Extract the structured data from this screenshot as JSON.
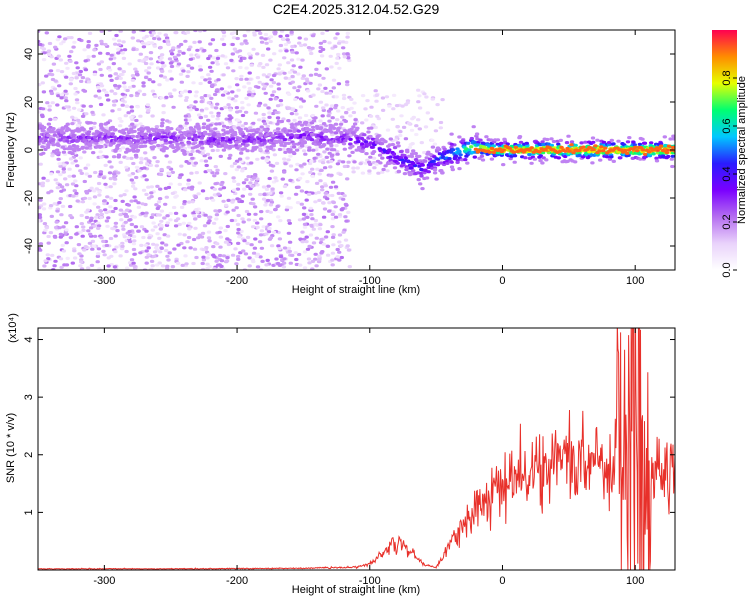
{
  "title": "C2E4.2025.312.04.52.G29",
  "colors": {
    "snr_line": "#e8302a",
    "frame": "#000000"
  },
  "chart_data": [
    {
      "type": "heatmap",
      "xlabel": "Height of straight line (km)",
      "ylabel": "Frequency (Hz)",
      "xlim": [
        -350,
        130
      ],
      "ylim": [
        -50,
        50
      ],
      "x_ticks": [
        -300,
        -200,
        -100,
        0,
        100
      ],
      "y_ticks": [
        -40,
        -20,
        0,
        20,
        40
      ],
      "colorbar": {
        "label": "Normalized spectral amplitude",
        "range": [
          0,
          1
        ],
        "ticks": [
          0.0,
          0.2,
          0.4,
          0.6,
          0.8
        ],
        "tick_labels": [
          "0.0",
          "0.2",
          "0.4",
          "0.6",
          "0.8"
        ],
        "colormap": [
          "#ffffff",
          "#e9d2fb",
          "#b46ef0",
          "#7a00ff",
          "#2a1cff",
          "#00c8ff",
          "#00ff70",
          "#e6ff00",
          "#ff8c00",
          "#ff0050"
        ]
      },
      "ridge": {
        "x": [
          -350,
          -300,
          -250,
          -200,
          -150,
          -120,
          -100,
          -80,
          -60,
          -50,
          -30,
          -20,
          0,
          50,
          90,
          100,
          130
        ],
        "freq": [
          5,
          5,
          5,
          4,
          6,
          5,
          3,
          -3,
          -8,
          -4,
          0,
          1,
          0,
          0,
          0,
          0,
          0
        ],
        "amplitude": [
          0.25,
          0.28,
          0.3,
          0.28,
          0.3,
          0.3,
          0.35,
          0.4,
          0.4,
          0.45,
          0.6,
          0.8,
          0.85,
          0.9,
          0.9,
          0.9,
          0.95
        ]
      },
      "noise_region_x": [
        -350,
        -115
      ]
    },
    {
      "type": "line",
      "xlabel": "Height of straight line (km)",
      "ylabel": "SNR (10 * v/v)",
      "y_multiplier": "(x10⁴)",
      "xlim": [
        -350,
        130
      ],
      "ylim": [
        0,
        4.2
      ],
      "x_ticks": [
        -300,
        -200,
        -100,
        0,
        100
      ],
      "y_ticks": [
        1,
        2,
        3,
        4
      ],
      "x": [
        -350,
        -250,
        -150,
        -110,
        -100,
        -90,
        -80,
        -70,
        -60,
        -50,
        -40,
        -30,
        -20,
        -10,
        0,
        10,
        20,
        30,
        40,
        50,
        60,
        70,
        80,
        90,
        95,
        100,
        105,
        110,
        120,
        130
      ],
      "y": [
        0.02,
        0.02,
        0.03,
        0.05,
        0.1,
        0.3,
        0.5,
        0.35,
        0.1,
        0.05,
        0.4,
        0.8,
        1.1,
        1.3,
        1.4,
        1.6,
        1.7,
        1.8,
        1.85,
        1.9,
        1.9,
        1.95,
        1.9,
        1.8,
        2.2,
        2.8,
        1.5,
        1.8,
        1.8,
        1.8
      ]
    }
  ]
}
